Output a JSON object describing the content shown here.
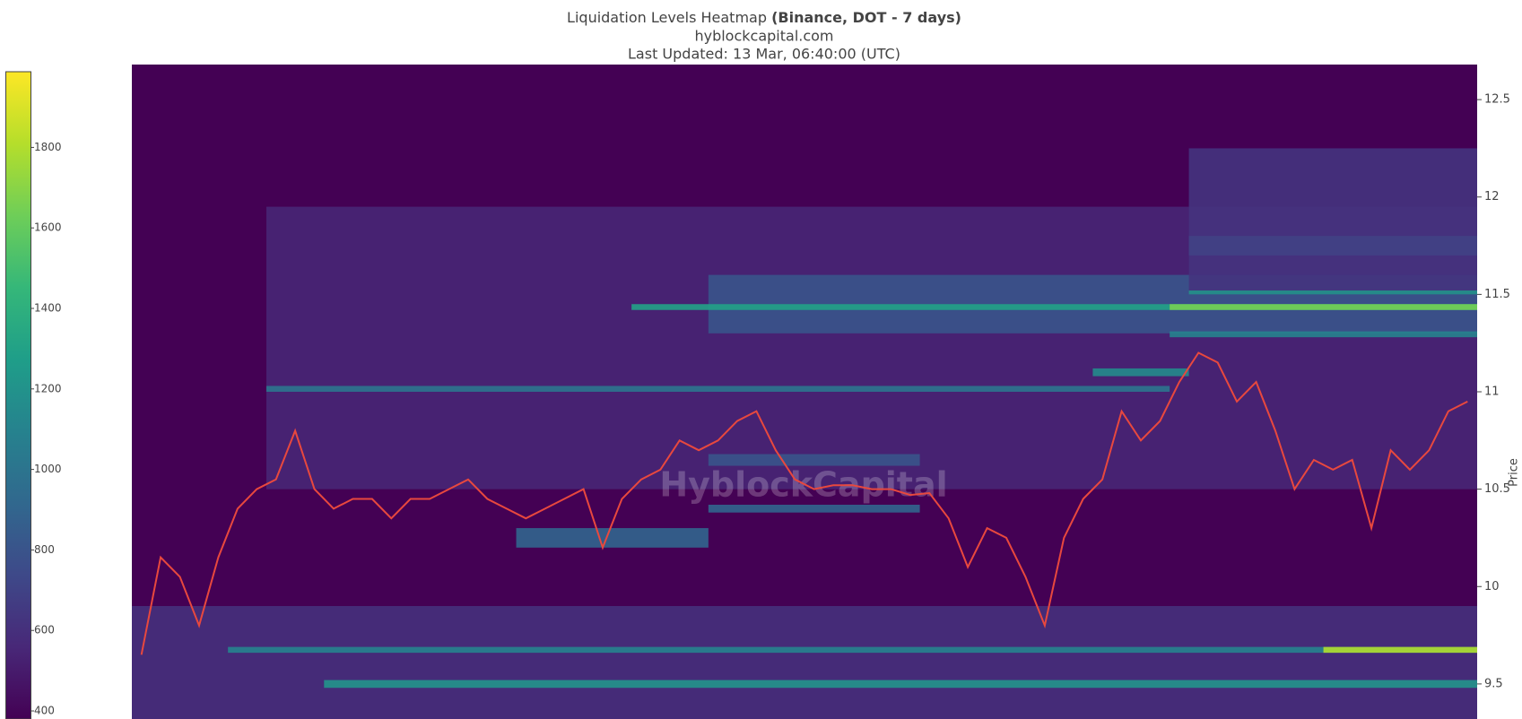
{
  "chart_data": {
    "type": "heatmap",
    "title": "Liquidation Levels Heatmap",
    "title_bold": "(Binance, DOT - 7 days)",
    "subtitle": "hyblockcapital.com",
    "updated": "Last Updated: 13 Mar, 06:40:00 (UTC)",
    "watermark": "HyblockCapital",
    "y_label": "Price",
    "ylim": [
      9.32,
      12.68
    ],
    "yticks": [
      9.5,
      10,
      10.5,
      11,
      11.5,
      12,
      12.5
    ],
    "clim": [
      380,
      1988
    ],
    "cticks": [
      400,
      600,
      800,
      1000,
      1200,
      1400,
      1600,
      1800
    ],
    "colorscale": [
      "#440154",
      "#482878",
      "#3e4989",
      "#31688e",
      "#26828e",
      "#1f9e89",
      "#35b779",
      "#6ece58",
      "#b5de2b",
      "#fde725"
    ],
    "cells": [
      {
        "start": 0,
        "end": 70,
        "price_lo": 9.32,
        "price_hi": 9.9,
        "value": 600
      },
      {
        "start": 7,
        "end": 70,
        "price_lo": 10.5,
        "price_hi": 11.95,
        "value": 550
      },
      {
        "start": 30,
        "end": 70,
        "price_lo": 11.3,
        "price_hi": 11.6,
        "value": 800
      },
      {
        "start": 55,
        "end": 70,
        "price_lo": 11.5,
        "price_hi": 12.25,
        "value": 620
      },
      {
        "start": 55,
        "end": 70,
        "price_lo": 11.7,
        "price_hi": 11.8,
        "value": 700
      },
      {
        "start": 5,
        "end": 70,
        "price_lo": 9.66,
        "price_hi": 9.69,
        "value": 1100
      },
      {
        "start": 62,
        "end": 70,
        "price_lo": 9.66,
        "price_hi": 9.69,
        "value": 1800
      },
      {
        "start": 10,
        "end": 70,
        "price_lo": 9.48,
        "price_hi": 9.52,
        "value": 1200
      },
      {
        "start": 26,
        "end": 70,
        "price_lo": 11.42,
        "price_hi": 11.45,
        "value": 1300
      },
      {
        "start": 54,
        "end": 70,
        "price_lo": 11.42,
        "price_hi": 11.45,
        "value": 1650
      },
      {
        "start": 54,
        "end": 70,
        "price_lo": 11.28,
        "price_hi": 11.31,
        "value": 1100
      },
      {
        "start": 55,
        "end": 70,
        "price_lo": 11.5,
        "price_hi": 11.52,
        "value": 1200
      },
      {
        "start": 7,
        "end": 54,
        "price_lo": 11.0,
        "price_hi": 11.03,
        "value": 1000
      },
      {
        "start": 50,
        "end": 55,
        "price_lo": 11.08,
        "price_hi": 11.12,
        "value": 1150
      },
      {
        "start": 20,
        "end": 30,
        "price_lo": 10.2,
        "price_hi": 10.3,
        "value": 900
      },
      {
        "start": 30,
        "end": 41,
        "price_lo": 10.62,
        "price_hi": 10.68,
        "value": 800
      },
      {
        "start": 30,
        "end": 41,
        "price_lo": 10.38,
        "price_hi": 10.42,
        "value": 900
      }
    ],
    "price": {
      "color": "#e8483e",
      "values": [
        9.65,
        10.15,
        10.05,
        9.8,
        10.15,
        10.4,
        10.5,
        10.55,
        10.8,
        10.5,
        10.4,
        10.45,
        10.45,
        10.35,
        10.45,
        10.45,
        10.5,
        10.55,
        10.45,
        10.4,
        10.35,
        10.4,
        10.45,
        10.5,
        10.2,
        10.45,
        10.55,
        10.6,
        10.75,
        10.7,
        10.75,
        10.85,
        10.9,
        10.7,
        10.55,
        10.5,
        10.52,
        10.52,
        10.5,
        10.5,
        10.47,
        10.48,
        10.35,
        10.1,
        10.3,
        10.25,
        10.05,
        9.8,
        10.25,
        10.45,
        10.55,
        10.9,
        10.75,
        10.85,
        11.05,
        11.2,
        11.15,
        10.95,
        11.05,
        10.8,
        10.5,
        10.65,
        10.6,
        10.65,
        10.3,
        10.7,
        10.6,
        10.7,
        10.9,
        10.95
      ]
    }
  }
}
